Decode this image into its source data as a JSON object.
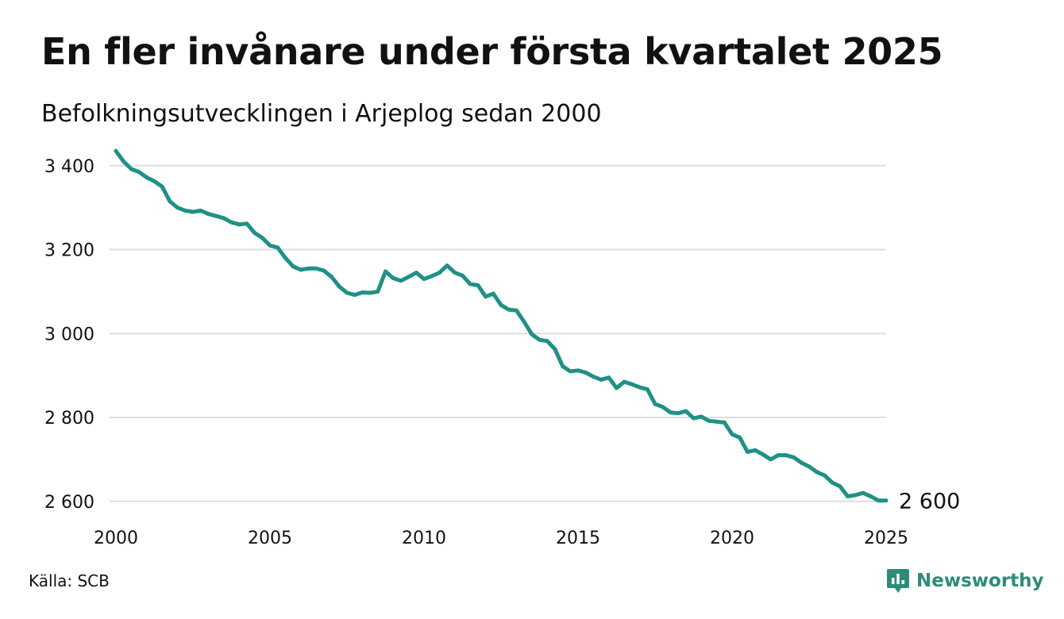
{
  "title": "En fler invånare under första kvartalet 2025",
  "subtitle": "Befolkningsutvecklingen i Arjeplog sedan 2000",
  "source": "Källa: SCB",
  "brand": {
    "name": "Newsworthy",
    "icon": "newsworthy-logo-icon"
  },
  "colors": {
    "line": "#1f9184",
    "grid": "#dddddd",
    "brand": "#2e8b7a"
  },
  "chart_data": {
    "type": "line",
    "title": "En fler invånare under första kvartalet 2025",
    "xlabel": "",
    "ylabel": "",
    "xlim": [
      2000,
      2025
    ],
    "ylim": [
      2575,
      3445
    ],
    "x_ticks": [
      2000,
      2005,
      2010,
      2015,
      2020,
      2025
    ],
    "x_tick_labels": [
      "2000",
      "2005",
      "2010",
      "2015",
      "2020",
      "2025"
    ],
    "y_ticks": [
      2600,
      2800,
      3000,
      3200,
      3400
    ],
    "y_tick_labels": [
      "2 600",
      "2 800",
      "3 000",
      "3 200",
      "3 400"
    ],
    "grid": "horizontal",
    "legend": "none",
    "end_label": "2 600",
    "series": [
      {
        "x": [
          2000,
          2000.25,
          2000.5,
          2000.75,
          2001,
          2001.25,
          2001.5,
          2001.75,
          2002,
          2002.25,
          2002.5,
          2002.75,
          2003,
          2003.25,
          2003.5,
          2003.75,
          2004,
          2004.25,
          2004.5,
          2004.75,
          2005,
          2005.25,
          2005.5,
          2005.75,
          2006,
          2006.25,
          2006.5,
          2006.75,
          2007,
          2007.25,
          2007.5,
          2007.75,
          2008,
          2008.25,
          2008.5,
          2008.75,
          2009,
          2009.25,
          2009.5,
          2009.75,
          2010,
          2010.25,
          2010.5,
          2010.75,
          2011,
          2011.25,
          2011.5,
          2011.75,
          2012,
          2012.25,
          2012.5,
          2012.75,
          2013,
          2013.25,
          2013.5,
          2013.75,
          2014,
          2014.25,
          2014.5,
          2014.75,
          2015,
          2015.25,
          2015.5,
          2015.75,
          2016,
          2016.25,
          2016.5,
          2016.75,
          2017,
          2017.25,
          2017.5,
          2017.75,
          2018,
          2018.25,
          2018.5,
          2018.75,
          2019,
          2019.25,
          2019.5,
          2019.75,
          2020,
          2020.25,
          2020.5,
          2020.75,
          2021,
          2021.25,
          2021.5,
          2021.75,
          2022,
          2022.25,
          2022.5,
          2022.75,
          2023,
          2023.25,
          2023.5,
          2023.75,
          2024,
          2024.25,
          2024.5,
          2024.75,
          2025
        ],
        "values": [
          3435,
          3410,
          3392,
          3385,
          3372,
          3363,
          3350,
          3315,
          3300,
          3293,
          3290,
          3293,
          3285,
          3280,
          3275,
          3265,
          3260,
          3262,
          3240,
          3228,
          3210,
          3205,
          3180,
          3160,
          3152,
          3155,
          3155,
          3150,
          3135,
          3112,
          3097,
          3092,
          3098,
          3097,
          3100,
          3148,
          3132,
          3126,
          3135,
          3145,
          3130,
          3137,
          3145,
          3162,
          3145,
          3138,
          3118,
          3115,
          3088,
          3095,
          3068,
          3057,
          3055,
          3028,
          2998,
          2985,
          2982,
          2963,
          2922,
          2910,
          2912,
          2907,
          2897,
          2890,
          2895,
          2870,
          2885,
          2879,
          2872,
          2867,
          2832,
          2825,
          2812,
          2810,
          2815,
          2798,
          2802,
          2792,
          2790,
          2788,
          2760,
          2752,
          2718,
          2722,
          2712,
          2700,
          2710,
          2710,
          2705,
          2692,
          2683,
          2670,
          2662,
          2645,
          2636,
          2612,
          2615,
          2620,
          2612,
          2602,
          2602
        ]
      }
    ]
  }
}
